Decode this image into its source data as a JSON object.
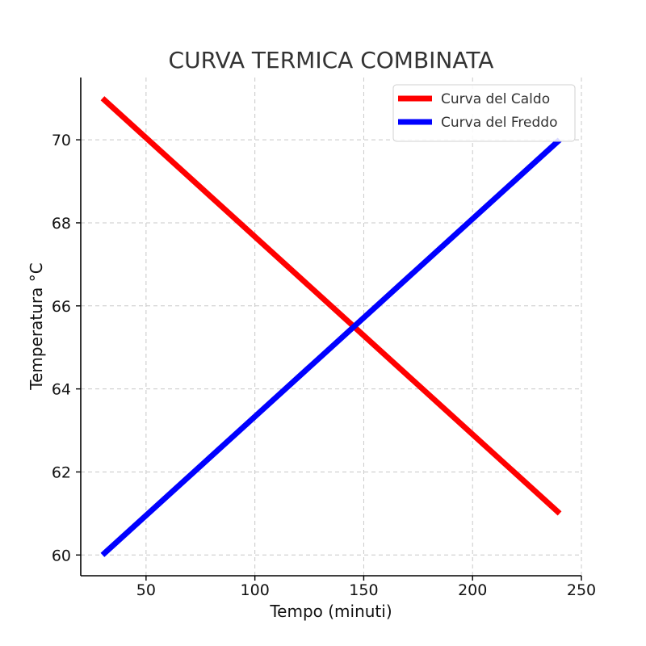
{
  "chart_data": {
    "type": "line",
    "title": "CURVA TERMICA COMBINATA",
    "xlabel": "Tempo (minuti)",
    "ylabel": "Temperatura °C",
    "xlim": [
      20,
      250
    ],
    "ylim": [
      59.5,
      71.5
    ],
    "xticks": [
      50,
      100,
      150,
      200,
      250
    ],
    "yticks": [
      60,
      62,
      64,
      66,
      68,
      70
    ],
    "grid": true,
    "legend_position": "top-right",
    "series": [
      {
        "name": "Curva del Caldo",
        "color": "#ff0000",
        "x": [
          30,
          240
        ],
        "y": [
          71,
          61
        ]
      },
      {
        "name": "Curva del Freddo",
        "color": "#0000ff",
        "x": [
          30,
          240
        ],
        "y": [
          60,
          70
        ]
      }
    ]
  }
}
